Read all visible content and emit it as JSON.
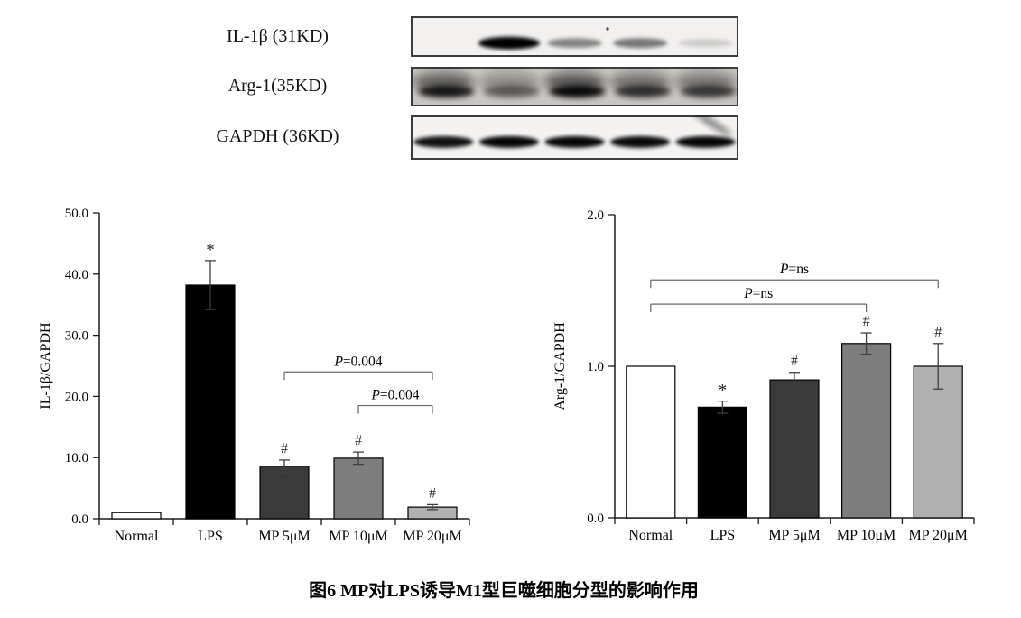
{
  "figure": {
    "caption": "图6 MP对LPS诱导M1型巨噬细胞分型的影响作用"
  },
  "blots": {
    "rows": [
      {
        "label": "IL-1β (31KD)",
        "style": "thin",
        "bg": "#f3f1ef",
        "y": 18,
        "height": 45,
        "band_intensities": [
          0,
          1.0,
          0.45,
          0.5,
          0.15
        ],
        "dot": true,
        "streak": false
      },
      {
        "label": "Arg-1(35KD)",
        "style": "smear",
        "bg": "#c9c5c1",
        "y": 74,
        "height": 44,
        "band_intensities": [
          0.9,
          0.5,
          1.0,
          0.75,
          0.7
        ],
        "dot": false,
        "streak": false
      },
      {
        "label": "GAPDH (36KD)",
        "style": "solid",
        "bg": "#f5f3f1",
        "y": 128,
        "height": 49,
        "band_intensities": [
          0.92,
          0.97,
          0.97,
          0.95,
          0.97
        ],
        "dot": false,
        "streak": true
      }
    ]
  },
  "chart_data": [
    {
      "type": "bar",
      "title": "",
      "ylabel": "IL-1β/GAPDH",
      "xlabel": "",
      "categories": [
        "Normal",
        "LPS",
        "MP 5μM",
        "MP 10μM",
        "MP 20μM"
      ],
      "values": [
        1.0,
        38.2,
        8.6,
        9.9,
        1.9
      ],
      "errors": [
        0,
        4.0,
        1.0,
        1.0,
        0.4
      ],
      "sig_labels": [
        "",
        "*",
        "#",
        "#",
        "#"
      ],
      "bar_colors": [
        "#ffffff",
        "#000000",
        "#3a3a3a",
        "#7d7d7d",
        "#b0b0b0"
      ],
      "ylim": [
        0,
        50
      ],
      "yticks": [
        "0.0",
        "10.0",
        "20.0",
        "30.0",
        "40.0",
        "50.0"
      ],
      "grid": "off",
      "legend": "none",
      "brackets": [
        {
          "from": 2,
          "to": 4,
          "height": 24.0,
          "label": "P=0.004"
        },
        {
          "from": 3,
          "to": 4,
          "height": 18.5,
          "label": "P=0.004"
        }
      ]
    },
    {
      "type": "bar",
      "title": "",
      "ylabel": "Arg-1/GAPDH",
      "xlabel": "",
      "categories": [
        "Normal",
        "LPS",
        "MP 5μM",
        "MP 10μM",
        "MP 20μM"
      ],
      "values": [
        1.0,
        0.73,
        0.91,
        1.15,
        1.0
      ],
      "errors": [
        0,
        0.04,
        0.05,
        0.07,
        0.15
      ],
      "sig_labels": [
        "",
        "*",
        "#",
        "#",
        "#"
      ],
      "bar_colors": [
        "#ffffff",
        "#000000",
        "#3a3a3a",
        "#7d7d7d",
        "#b0b0b0"
      ],
      "ylim": [
        0,
        2
      ],
      "yticks": [
        "0.0",
        "1.0",
        "2.0"
      ],
      "grid": "off",
      "legend": "none",
      "brackets": [
        {
          "from": 0,
          "to": 4,
          "height": 1.57,
          "label": "P=ns"
        },
        {
          "from": 0,
          "to": 3,
          "height": 1.41,
          "label": "P=ns"
        }
      ]
    }
  ]
}
